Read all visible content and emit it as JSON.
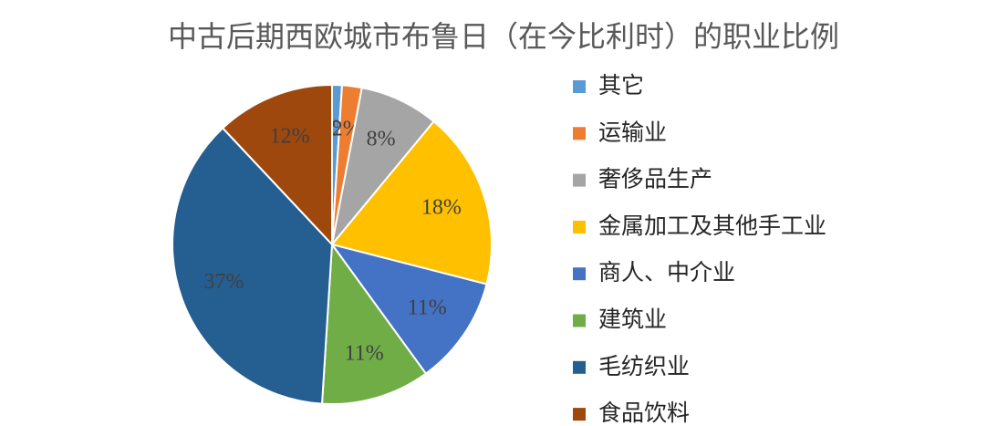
{
  "chart_data": {
    "type": "pie",
    "title": "中古后期西欧城市布鲁日（在今比利时）的职业比例",
    "categories": [
      "其它",
      "运输业",
      "奢侈品生产",
      "金属加工及其他手工业",
      "商人、中介业",
      "建筑业",
      "毛纺织业",
      "食品饮料"
    ],
    "values": [
      1,
      2,
      8,
      18,
      11,
      11,
      37,
      12
    ],
    "value_labels": [
      "1%",
      "2%",
      "8%",
      "18%",
      "11%",
      "11%",
      "37%",
      "12%"
    ],
    "colors": [
      "#5b9bd5",
      "#ed7d31",
      "#a5a5a5",
      "#ffc000",
      "#4472c4",
      "#70ad47",
      "#255e91",
      "#9e480e"
    ],
    "legend": "right"
  }
}
